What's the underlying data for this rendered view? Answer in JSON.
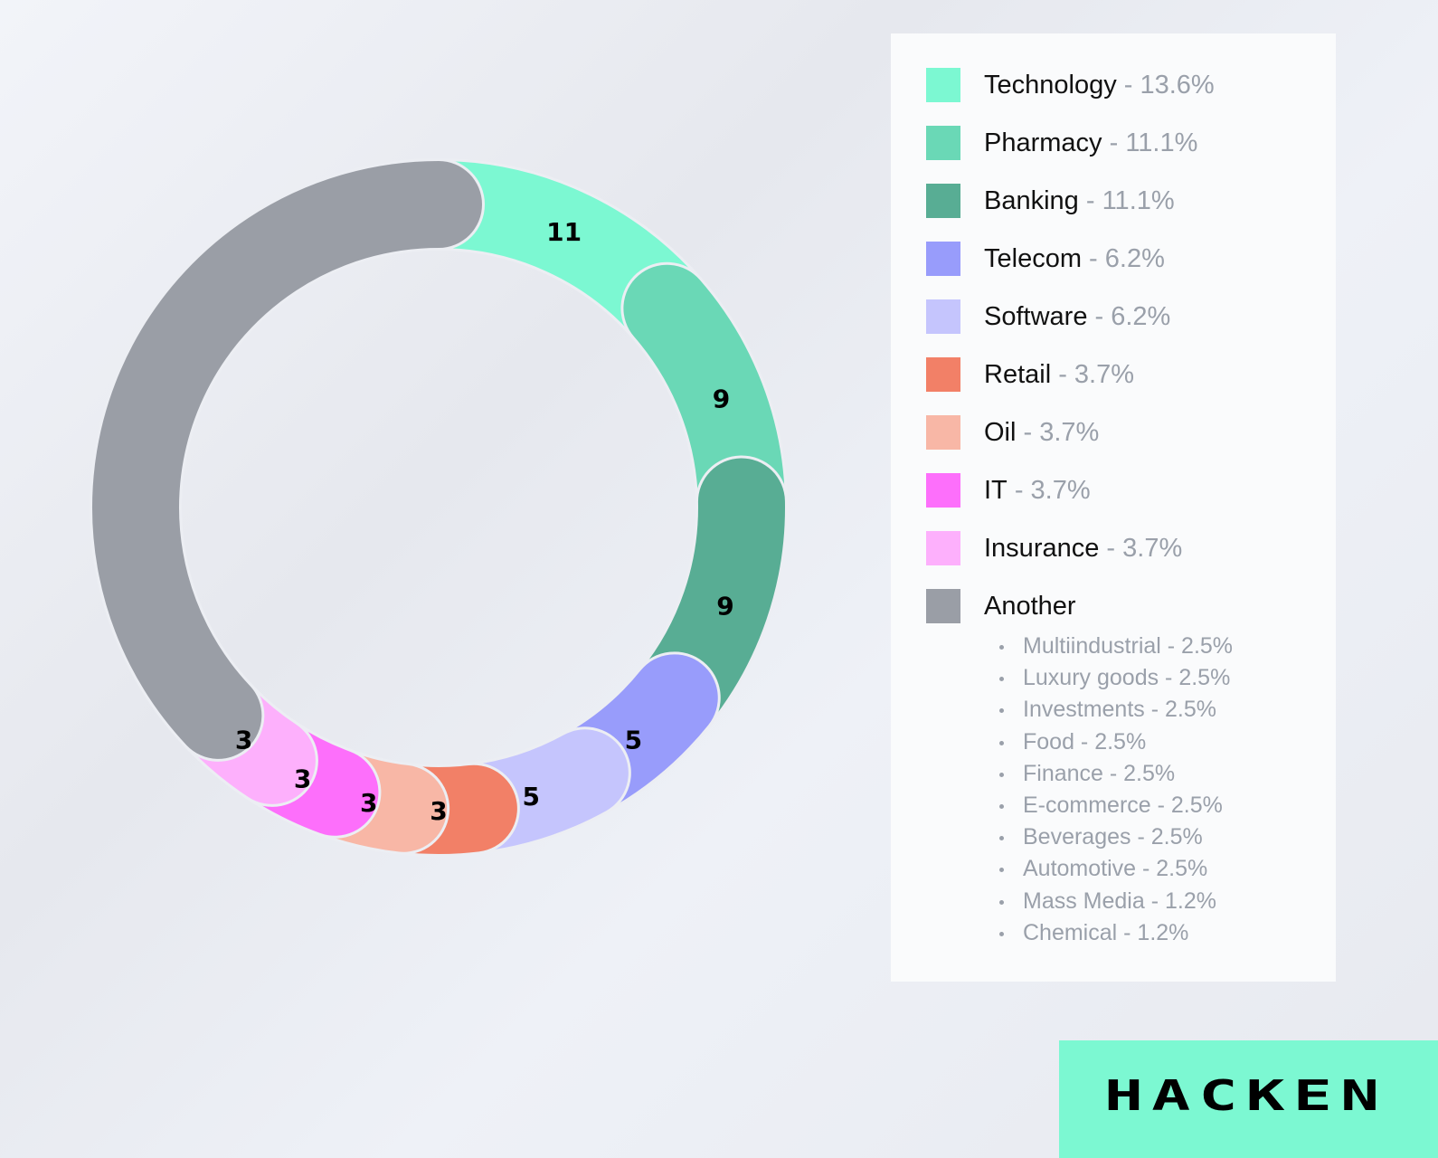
{
  "chart_data": {
    "type": "pie",
    "donut": true,
    "direction": "clockwise-from-top",
    "categories": [
      "Technology",
      "Pharmacy",
      "Banking",
      "Telecom",
      "Software",
      "Retail",
      "Oil",
      "IT",
      "Insurance",
      "Another"
    ],
    "values": [
      11,
      9,
      9,
      5,
      5,
      3,
      3,
      3,
      3,
      30
    ],
    "data_labels": [
      "11",
      "9",
      "9",
      "5",
      "5",
      "3",
      "3",
      "3",
      "3",
      ""
    ],
    "colors": [
      "#7cf8d2",
      "#6ad8b6",
      "#58ad94",
      "#989cfb",
      "#c5c5fd",
      "#f28067",
      "#f8b7a6",
      "#fd6ffb",
      "#fdb0fc",
      "#9a9ea6"
    ],
    "legend_position": "right"
  },
  "legend": {
    "items": [
      {
        "name": "Technology",
        "pct": " - 13.6%"
      },
      {
        "name": "Pharmacy",
        "pct": " - 11.1%"
      },
      {
        "name": "Banking",
        "pct": " - 11.1%"
      },
      {
        "name": "Telecom",
        "pct": " - 6.2%"
      },
      {
        "name": "Software",
        "pct": " - 6.2%"
      },
      {
        "name": "Retail",
        "pct": " - 3.7%"
      },
      {
        "name": "Oil",
        "pct": " - 3.7%"
      },
      {
        "name": "IT",
        "pct": " - 3.7%"
      },
      {
        "name": "Insurance",
        "pct": " - 3.7%"
      },
      {
        "name": "Another",
        "pct": ""
      }
    ],
    "another_breakdown": [
      "Multiindustrial - 2.5%",
      "Luxury goods - 2.5%",
      "Investments - 2.5%",
      "Food - 2.5%",
      "Finance - 2.5%",
      "E-commerce - 2.5%",
      "Beverages - 2.5%",
      "Automotive - 2.5%",
      "Mass Media - 1.2%",
      "Chemical - 1.2%"
    ]
  },
  "logo": {
    "text": "HACKEN",
    "bg_color": "#7cf8d2"
  }
}
